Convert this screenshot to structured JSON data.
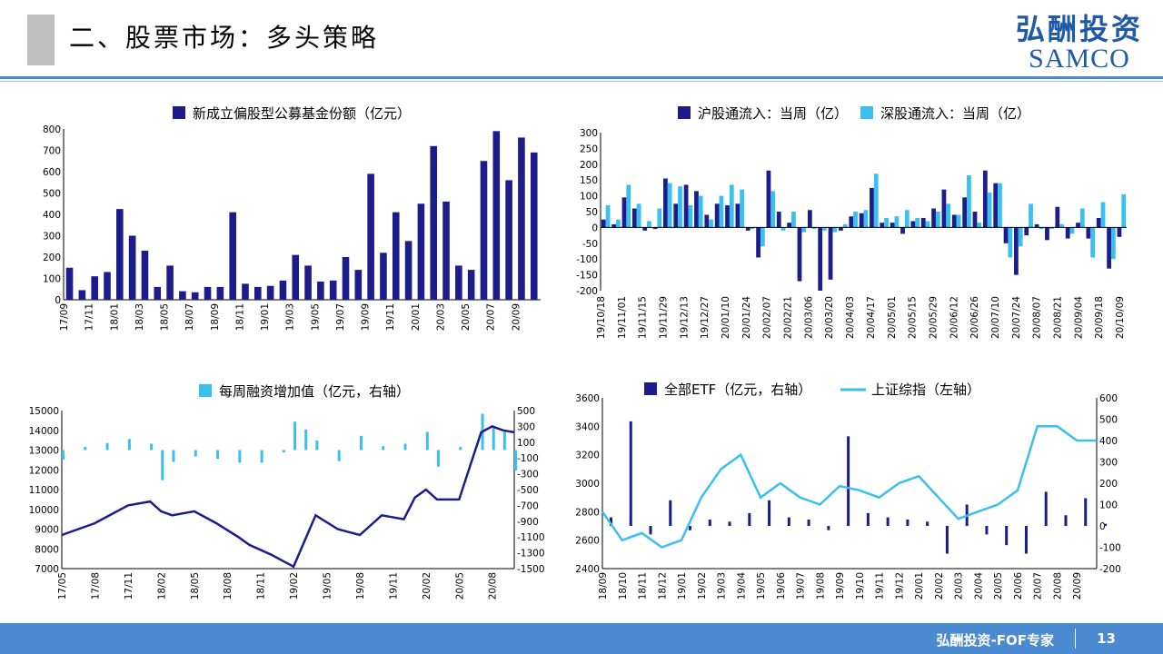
{
  "header": {
    "title": "二、股票市场：多头策略",
    "logo_cn": "弘酬投资",
    "logo_en": "SAMCO"
  },
  "footer": {
    "label": "弘酬投资-FOF专家",
    "page": "13"
  },
  "colors": {
    "navy": "#1c1c8a",
    "cyan": "#3ac0ee",
    "accent_blue": "#4a8ad0"
  },
  "chart_data": [
    {
      "type": "bar",
      "legend": [
        "新成立偏股型公募基金份额（亿元）"
      ],
      "legend_placement": "top",
      "ylim": [
        0,
        800
      ],
      "yticks": [
        0,
        100,
        200,
        300,
        400,
        500,
        600,
        700,
        800
      ],
      "x_start": "2017-09-01",
      "x_end": "2020-10-15",
      "xticks": [
        "17/09",
        "17/11",
        "18/01",
        "18/03",
        "18/05",
        "18/07",
        "18/09",
        "18/11",
        "19/01",
        "19/03",
        "19/05",
        "19/07",
        "19/09",
        "19/11",
        "20/01",
        "20/03",
        "20/05",
        "20/07",
        "20/09"
      ],
      "x": [
        "17/09",
        "17/10",
        "17/11",
        "17/12",
        "18/01",
        "18/02",
        "18/03",
        "18/04",
        "18/05",
        "18/06",
        "18/07",
        "18/08",
        "18/09",
        "18/10",
        "18/11",
        "18/12",
        "19/01",
        "19/02",
        "19/03",
        "19/04",
        "19/05",
        "19/06",
        "19/07",
        "19/08",
        "19/09",
        "19/10",
        "19/11",
        "19/12",
        "20/01",
        "20/02",
        "20/03",
        "20/04",
        "20/05",
        "20/06",
        "20/07",
        "20/08",
        "20/09",
        "20/10"
      ],
      "series": [
        {
          "name": "新成立偏股型公募基金份额（亿元）",
          "values": [
            150,
            45,
            110,
            130,
            425,
            300,
            230,
            60,
            160,
            40,
            35,
            60,
            60,
            410,
            75,
            60,
            65,
            90,
            210,
            160,
            85,
            90,
            200,
            140,
            590,
            220,
            410,
            275,
            450,
            720,
            460,
            160,
            140,
            650,
            790,
            560,
            760,
            690
          ]
        }
      ]
    },
    {
      "type": "bar",
      "legend": [
        "沪股通流入：当周（亿）",
        "深股通流入：当周（亿）"
      ],
      "legend_placement": "top",
      "ylim": [
        -200,
        300
      ],
      "yticks": [
        -200,
        -150,
        -100,
        -50,
        0,
        50,
        100,
        150,
        200,
        250,
        300
      ],
      "xticks": [
        "19/10/18",
        "19/11/01",
        "19/11/15",
        "19/11/29",
        "19/12/13",
        "19/12/27",
        "20/01/10",
        "20/01/24",
        "20/02/07",
        "20/02/21",
        "20/03/06",
        "20/03/20",
        "20/04/03",
        "20/04/17",
        "20/05/01",
        "20/05/15",
        "20/05/29",
        "20/06/12",
        "20/06/26",
        "20/07/10",
        "20/07/24",
        "20/08/07",
        "20/08/21",
        "20/09/04",
        "20/09/18",
        "20/10/09"
      ],
      "series": [
        {
          "name": "沪股通流入：当周（亿）",
          "values": [
            25,
            10,
            95,
            60,
            -10,
            -5,
            155,
            75,
            135,
            115,
            40,
            75,
            70,
            75,
            -10,
            -95,
            180,
            50,
            15,
            -170,
            55,
            -200,
            -165,
            -10,
            35,
            45,
            125,
            15,
            15,
            -20,
            20,
            30,
            60,
            120,
            40,
            95,
            50,
            180,
            140,
            -50,
            -150,
            -25,
            10,
            -40,
            65,
            -35,
            15,
            -35,
            30,
            -130,
            -30
          ]
        },
        {
          "name": "深股通流入：当周（亿）",
          "values": [
            70,
            25,
            135,
            75,
            20,
            60,
            140,
            130,
            70,
            100,
            25,
            100,
            135,
            120,
            -5,
            -60,
            115,
            -10,
            50,
            -15,
            -5,
            -10,
            -15,
            10,
            50,
            55,
            170,
            30,
            35,
            55,
            30,
            20,
            50,
            75,
            40,
            165,
            15,
            110,
            140,
            -95,
            -60,
            75,
            -5,
            -5,
            10,
            -20,
            60,
            -95,
            80,
            -100,
            105
          ]
        }
      ],
      "x_range": [
        "19/10/18",
        "20/10/09"
      ]
    },
    {
      "type": "bar+line",
      "legend": [
        "每周融资增加值（亿元，右轴）"
      ],
      "legend_placement": "top",
      "ylim_left": [
        7000,
        15000
      ],
      "yticks_left": [
        7000,
        8000,
        9000,
        10000,
        11000,
        12000,
        13000,
        14000,
        15000
      ],
      "ylim_right": [
        -1500,
        500
      ],
      "yticks_right": [
        -1500,
        -1300,
        -1100,
        -900,
        -700,
        -500,
        -300,
        -100,
        100,
        300,
        500
      ],
      "xticks": [
        "17/05",
        "17/08",
        "17/11",
        "18/02",
        "18/05",
        "18/08",
        "18/11",
        "19/02",
        "19/05",
        "19/08",
        "19/11",
        "20/02",
        "20/05",
        "20/08"
      ],
      "x_range": [
        "17/05",
        "20/10"
      ],
      "series": [
        {
          "name": "每周融资增加值（亿元，右轴）",
          "axis": "right",
          "kind": "bar",
          "x": [
            "17/05",
            "17/07",
            "17/09",
            "17/11",
            "18/01",
            "18/02",
            "18/03",
            "18/05",
            "18/07",
            "18/09",
            "18/11",
            "19/01",
            "19/02",
            "19/03",
            "19/04",
            "19/06",
            "19/08",
            "19/10",
            "19/12",
            "20/02",
            "20/03",
            "20/05",
            "20/07",
            "20/08",
            "20/09",
            "20/10"
          ],
          "values": [
            -120,
            40,
            90,
            140,
            80,
            -380,
            -150,
            -80,
            -110,
            -160,
            -160,
            -30,
            360,
            260,
            120,
            -140,
            180,
            50,
            80,
            230,
            -210,
            40,
            460,
            280,
            230,
            -260
          ]
        },
        {
          "kind": "line",
          "axis": "left",
          "x": [
            "17/05",
            "17/08",
            "17/11",
            "18/01",
            "18/02",
            "18/03",
            "18/05",
            "18/07",
            "18/09",
            "18/10",
            "18/12",
            "19/01",
            "19/02",
            "19/03",
            "19/04",
            "19/06",
            "19/08",
            "19/10",
            "19/12",
            "20/01",
            "20/02",
            "20/03",
            "20/05",
            "20/06",
            "20/07",
            "20/08",
            "20/09",
            "20/10"
          ],
          "values": [
            8700,
            9300,
            10200,
            10400,
            9900,
            9700,
            9900,
            9300,
            8600,
            8200,
            7700,
            7400,
            7100,
            8400,
            9700,
            9000,
            8700,
            9700,
            9500,
            10600,
            11000,
            10500,
            10500,
            12200,
            13900,
            14200,
            14000,
            13900
          ]
        }
      ]
    },
    {
      "type": "bar+line",
      "legend": [
        "全部ETF（亿元，右轴）",
        "上证综指（左轴）"
      ],
      "legend_placement": "top",
      "ylim_left": [
        2400,
        3600
      ],
      "yticks_left": [
        2400,
        2600,
        2800,
        3000,
        3200,
        3400,
        3600
      ],
      "ylim_right": [
        -200,
        600
      ],
      "yticks_right": [
        -200,
        -100,
        0,
        100,
        200,
        300,
        400,
        500,
        600
      ],
      "xticks": [
        "18/09",
        "18/10",
        "18/11",
        "18/12",
        "19/01",
        "19/02",
        "19/03",
        "19/04",
        "19/05",
        "19/06",
        "19/07",
        "19/08",
        "19/09",
        "19/10",
        "19/11",
        "19/12",
        "20/01",
        "20/02",
        "20/03",
        "20/04",
        "20/05",
        "20/06",
        "20/07",
        "20/08",
        "20/09"
      ],
      "x_range": [
        "18/09",
        "20/10"
      ],
      "series": [
        {
          "name": "全部ETF（亿元，右轴）",
          "axis": "right",
          "kind": "bar",
          "x": [
            "18/09",
            "18/10",
            "18/11",
            "18/12",
            "19/01",
            "19/02",
            "19/03",
            "19/04",
            "19/05",
            "19/06",
            "19/07",
            "19/08",
            "19/09",
            "19/10",
            "19/11",
            "19/12",
            "20/01",
            "20/02",
            "20/03",
            "20/04",
            "20/05",
            "20/06",
            "20/07",
            "20/08",
            "20/09",
            "20/10"
          ],
          "values": [
            40,
            490,
            -40,
            120,
            -20,
            30,
            20,
            60,
            120,
            40,
            30,
            -20,
            420,
            60,
            40,
            30,
            20,
            -130,
            100,
            -40,
            -90,
            -130,
            160,
            50,
            130,
            10
          ]
        },
        {
          "name": "上证综指（左轴）",
          "axis": "left",
          "kind": "line",
          "x": [
            "18/09",
            "18/10",
            "18/11",
            "18/12",
            "19/01",
            "19/02",
            "19/03",
            "19/04",
            "19/05",
            "19/06",
            "19/07",
            "19/08",
            "19/09",
            "19/10",
            "19/11",
            "19/12",
            "20/01",
            "20/02",
            "20/03",
            "20/04",
            "20/05",
            "20/06",
            "20/07",
            "20/08",
            "20/09",
            "20/10"
          ],
          "values": [
            2800,
            2600,
            2650,
            2550,
            2600,
            2900,
            3100,
            3200,
            2900,
            3000,
            2900,
            2850,
            2980,
            2950,
            2900,
            3000,
            3050,
            2900,
            2750,
            2800,
            2850,
            2950,
            3400,
            3400,
            3300,
            3300
          ]
        }
      ]
    }
  ]
}
